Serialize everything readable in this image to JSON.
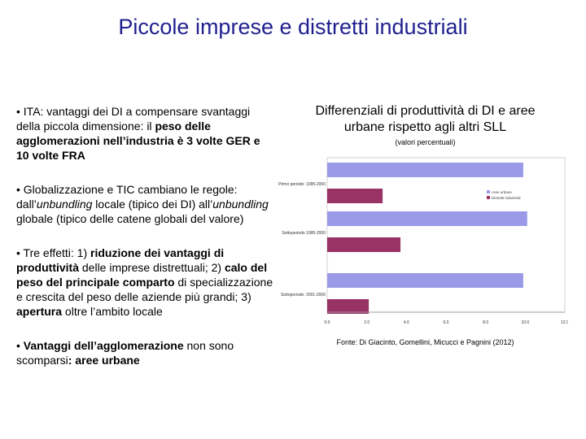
{
  "slide": {
    "title": "Piccole imprese e distretti industriali"
  },
  "bullets": [
    {
      "parts": [
        {
          "t": "• ITA: vantaggi dei DI a compensare svantaggi della piccola dimensione: il "
        },
        {
          "t": "peso delle agglomerazioni nell’industria è 3 volte GER e 10 volte FRA",
          "b": true
        }
      ]
    },
    {
      "parts": [
        {
          "t": "• Globalizzazione e TIC cambiano le regole: dall’"
        },
        {
          "t": "unbundling",
          "i": true
        },
        {
          "t": " locale (tipico dei DI) all’"
        },
        {
          "t": "unbundling",
          "i": true
        },
        {
          "t": " globale (tipico delle catene globali del valore)"
        }
      ]
    },
    {
      "parts": [
        {
          "t": "• Tre effetti: 1) "
        },
        {
          "t": "riduzione dei vantaggi di produttività",
          "b": true
        },
        {
          "t": " delle imprese distrettuali; 2) "
        },
        {
          "t": "calo del peso del principale comparto",
          "b": true
        },
        {
          "t": " di specializzazione e crescita del peso delle aziende più grandi; 3)  "
        },
        {
          "t": "apertura",
          "b": true
        },
        {
          "t": " oltre l’ambito locale"
        }
      ]
    },
    {
      "parts": [
        {
          "t": "• "
        },
        {
          "t": "Vantaggi dell’agglomerazione",
          "b": true
        },
        {
          "t": " non sono scomparsi"
        },
        {
          "t": ": aree urbane",
          "b": true
        }
      ]
    }
  ],
  "chart_title": "Differenziali di produttività di DI e aree urbane rispetto agli altri SLL",
  "chart_subtitle": "(valori percentuali)",
  "source": "Fonte: Di Giacinto, Gomellini, Micucci e Pagnini (2012)",
  "chart_data": {
    "type": "bar",
    "orientation": "horizontal",
    "categories": [
      "Primo periodo: 1995-2000",
      "Sottoperiodo 1995-2000",
      "Sottoperiodo: 2001-2006"
    ],
    "series": [
      {
        "name": "Aree urbane",
        "values": [
          9.9,
          10.1,
          9.9
        ],
        "color": "#9a9ae8"
      },
      {
        "name": "Distretti industriali",
        "values": [
          2.8,
          3.7,
          2.1
        ],
        "color": "#993366"
      }
    ],
    "x_ticks": [
      "0.0",
      "2.0",
      "4.0",
      "6.0",
      "8.0",
      "10.0",
      "12.0"
    ],
    "xlim": [
      0,
      12
    ],
    "grid": false,
    "legend": "top-right"
  }
}
